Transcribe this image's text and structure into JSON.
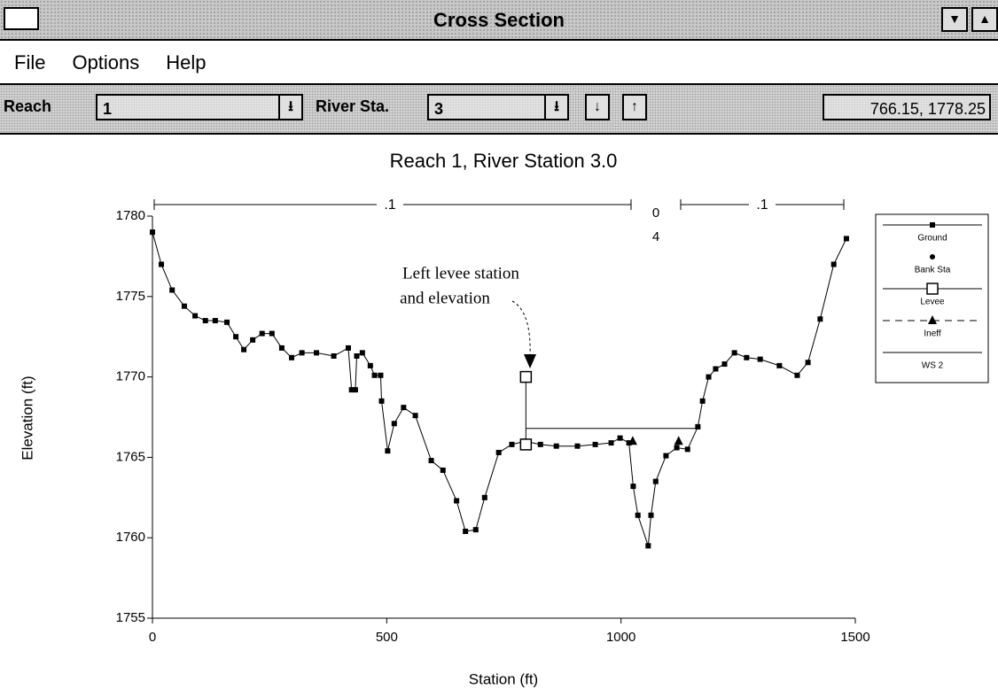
{
  "window": {
    "title": "Cross Section"
  },
  "menu": [
    "File",
    "Options",
    "Help"
  ],
  "toolbar": {
    "reach_label": "Reach",
    "reach_value": "1",
    "station_label": "River Sta.",
    "station_value": "3",
    "readout": "766.15, 1778.25"
  },
  "chart_data": {
    "type": "line",
    "title": "Reach 1,  River Station 3.0",
    "x_label": "Station (ft)",
    "y_label": "Elevation (ft)",
    "xlim": [
      0,
      1500
    ],
    "xticks": [
      0,
      500,
      1000,
      1500
    ],
    "ylim": [
      1755,
      1780
    ],
    "yticks": [
      1755,
      1760,
      1765,
      1770,
      1775,
      1780
    ],
    "n_labels": [
      ".1",
      "0",
      "4",
      ".1"
    ],
    "annotation": [
      "Left levee station",
      "and elevation"
    ],
    "series": [
      {
        "name": "Ground",
        "color": "#000000",
        "marker": "square",
        "line": "solid",
        "x": [
          0,
          19,
          42,
          68,
          91,
          113,
          134,
          159,
          178,
          195,
          214,
          234,
          255,
          276,
          297,
          319,
          350,
          387,
          418,
          425,
          433,
          436,
          448,
          465,
          474,
          487,
          489,
          502,
          516,
          536,
          561,
          595,
          620,
          649,
          668,
          690,
          709,
          739,
          767,
          795,
          828,
          862,
          907,
          945,
          979,
          998,
          1017,
          1026,
          1036,
          1058,
          1064,
          1074,
          1096,
          1119,
          1142,
          1164,
          1174,
          1187,
          1202,
          1221,
          1242,
          1268,
          1297,
          1338,
          1376,
          1399,
          1425,
          1454,
          1481
        ],
        "values": [
          1779,
          1777,
          1775.4,
          1774.4,
          1773.8,
          1773.5,
          1773.5,
          1773.4,
          1772.5,
          1771.7,
          1772.3,
          1772.7,
          1772.7,
          1771.8,
          1771.2,
          1771.5,
          1771.5,
          1771.3,
          1771.8,
          1769.2,
          1769.2,
          1771.3,
          1771.5,
          1770.7,
          1770.1,
          1770.1,
          1768.5,
          1765.4,
          1767.1,
          1768.1,
          1767.6,
          1764.8,
          1764.2,
          1762.3,
          1760.4,
          1760.5,
          1762.5,
          1765.3,
          1765.8,
          1766,
          1765.8,
          1765.7,
          1765.7,
          1765.8,
          1765.9,
          1766.2,
          1765.9,
          1763.2,
          1761.4,
          1759.5,
          1761.4,
          1763.5,
          1765.1,
          1765.6,
          1765.5,
          1766.9,
          1768.5,
          1770,
          1770.5,
          1770.8,
          1771.5,
          1771.2,
          1771.1,
          1770.7,
          1770.1,
          1770.9,
          1773.6,
          1777,
          1778.6
        ]
      },
      {
        "name": "Bank Sta",
        "color": "#000000",
        "marker": "dot",
        "line": "none",
        "x": [],
        "values": []
      },
      {
        "name": "Levee",
        "color": "#000000",
        "marker": "open-square",
        "line": "solid",
        "x": [
          797,
          797
        ],
        "values": [
          1770,
          1765.8
        ]
      },
      {
        "name": "Ineff",
        "color": "#000000",
        "marker": "triangle",
        "line": "none",
        "x": [
          1025,
          1123
        ],
        "values": [
          1766,
          1766
        ]
      },
      {
        "name": "WS 2",
        "color": "#000000",
        "marker": "none",
        "line": "solid",
        "x": [
          797,
          1166
        ],
        "values": [
          1766.8,
          1766.8
        ]
      }
    ]
  }
}
